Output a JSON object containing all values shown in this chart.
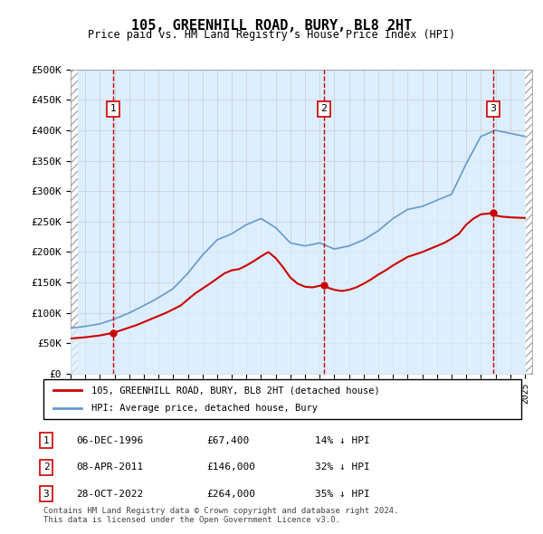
{
  "title": "105, GREENHILL ROAD, BURY, BL8 2HT",
  "subtitle": "Price paid vs. HM Land Registry's House Price Index (HPI)",
  "ylim": [
    0,
    500000
  ],
  "yticks": [
    0,
    50000,
    100000,
    150000,
    200000,
    250000,
    300000,
    350000,
    400000,
    450000,
    500000
  ],
  "ytick_labels": [
    "£0",
    "£50K",
    "£100K",
    "£150K",
    "£200K",
    "£250K",
    "£300K",
    "£350K",
    "£400K",
    "£450K",
    "£500K"
  ],
  "purchases": [
    {
      "date_num": 1996.92,
      "price": 67400,
      "label": "1"
    },
    {
      "date_num": 2011.27,
      "price": 146000,
      "label": "2"
    },
    {
      "date_num": 2022.83,
      "price": 264000,
      "label": "3"
    }
  ],
  "purchase_color": "#cc0000",
  "purchase_marker_color": "#cc0000",
  "hpi_color": "#6699cc",
  "hpi_fill_color": "#ddeeff",
  "vline_color": "#cc0000",
  "vline_style": "--",
  "background_hatch_color": "#e8e8f0",
  "grid_color": "#cccccc",
  "box_color": "#cc0000",
  "legend_items": [
    {
      "label": "105, GREENHILL ROAD, BURY, BL8 2HT (detached house)",
      "color": "#cc0000"
    },
    {
      "label": "HPI: Average price, detached house, Bury",
      "color": "#6699cc"
    }
  ],
  "table_rows": [
    {
      "num": "1",
      "date": "06-DEC-1996",
      "price": "£67,400",
      "hpi": "14% ↓ HPI"
    },
    {
      "num": "2",
      "date": "08-APR-2011",
      "price": "£146,000",
      "hpi": "32% ↓ HPI"
    },
    {
      "num": "3",
      "date": "28-OCT-2022",
      "price": "£264,000",
      "hpi": "35% ↓ HPI"
    }
  ],
  "footer": "Contains HM Land Registry data © Crown copyright and database right 2024.\nThis data is licensed under the Open Government Licence v3.0.",
  "xmin": 1994,
  "xmax": 2025.5
}
